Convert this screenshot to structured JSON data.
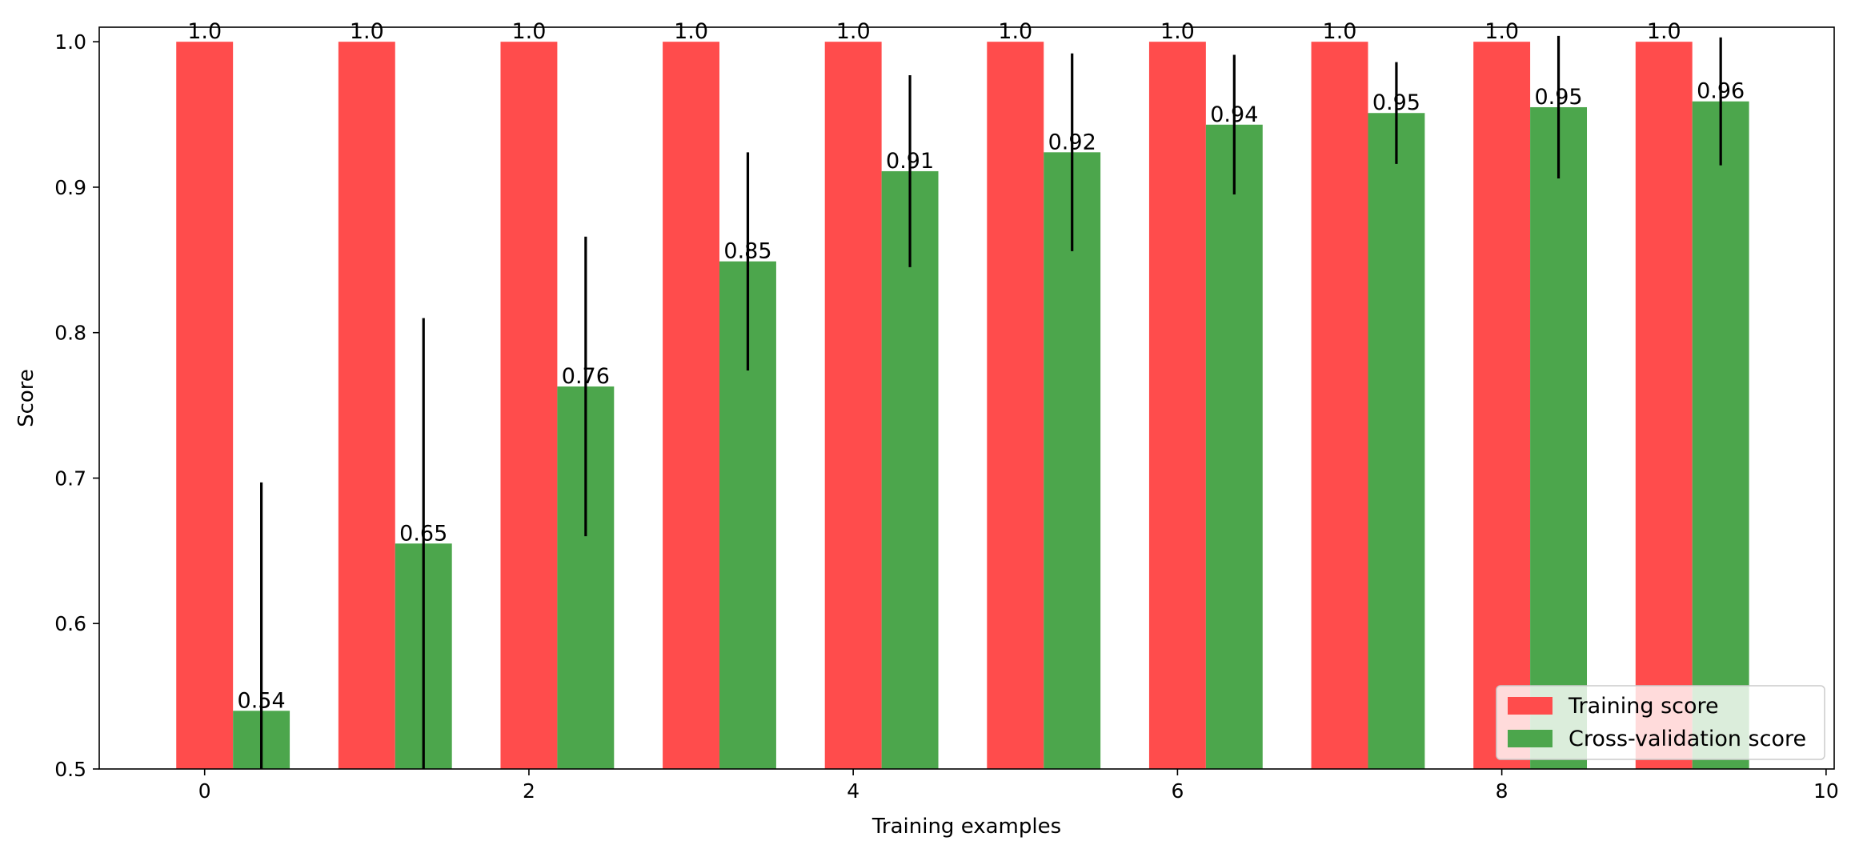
{
  "chart_data": {
    "type": "bar",
    "title": "",
    "xlabel": "Training examples",
    "ylabel": "Score",
    "xlim": [
      -0.65,
      10.05
    ],
    "ylim": [
      0.5,
      1.01
    ],
    "x_ticks": [
      0,
      2,
      4,
      6,
      8,
      10
    ],
    "y_ticks": [
      0.5,
      0.6,
      0.7,
      0.8,
      0.9,
      1.0
    ],
    "x_tick_labels": [
      "0",
      "2",
      "4",
      "6",
      "8",
      "10"
    ],
    "y_tick_labels": [
      "0.5",
      "0.6",
      "0.7",
      "0.8",
      "0.9",
      "1.0"
    ],
    "grid": false,
    "legend_position": "lower-right",
    "categories": [
      0,
      1,
      2,
      3,
      4,
      5,
      6,
      7,
      8,
      9
    ],
    "bar_width": 0.35,
    "series": [
      {
        "name": "Training score",
        "color": "#ff4c4c",
        "offset": 0,
        "values": [
          1.0,
          1.0,
          1.0,
          1.0,
          1.0,
          1.0,
          1.0,
          1.0,
          1.0,
          1.0
        ],
        "labels": [
          "1.0",
          "1.0",
          "1.0",
          "1.0",
          "1.0",
          "1.0",
          "1.0",
          "1.0",
          "1.0",
          "1.0"
        ],
        "errors": [
          0,
          0,
          0,
          0,
          0,
          0,
          0,
          0,
          0,
          0
        ]
      },
      {
        "name": "Cross-validation score",
        "color": "#4ca64c",
        "offset": 0.35,
        "values": [
          0.54,
          0.655,
          0.763,
          0.849,
          0.911,
          0.924,
          0.943,
          0.951,
          0.955,
          0.959
        ],
        "labels": [
          "0.54",
          "0.65",
          "0.76",
          "0.85",
          "0.91",
          "0.92",
          "0.94",
          "0.95",
          "0.95",
          "0.96"
        ],
        "errors": [
          0.157,
          0.155,
          0.103,
          0.075,
          0.066,
          0.068,
          0.048,
          0.035,
          0.049,
          0.044
        ]
      }
    ]
  }
}
